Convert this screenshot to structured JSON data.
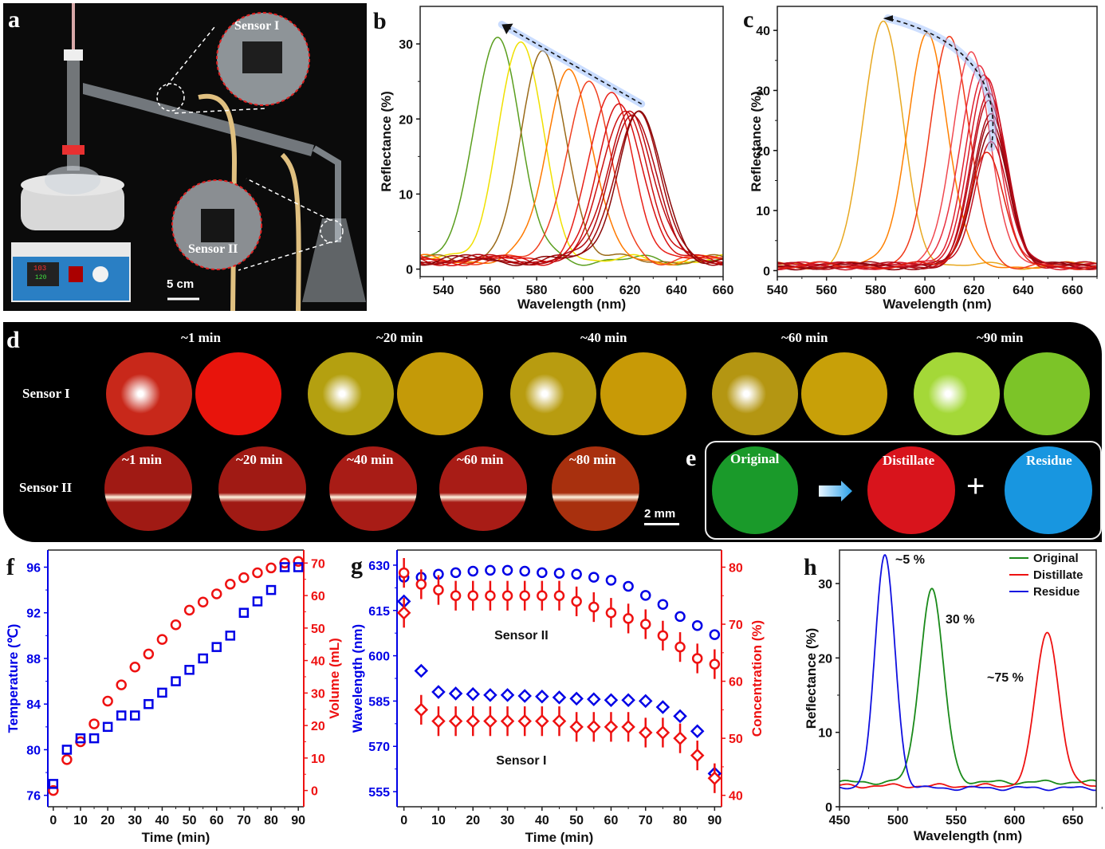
{
  "panel_labels": {
    "a": "a",
    "b": "b",
    "c": "c",
    "d": "d",
    "e": "e",
    "f": "f",
    "g": "g",
    "h": "h"
  },
  "panel_a": {
    "sensor1_label": "Sensor I",
    "sensor2_label": "Sensor II",
    "scale_bar": "5 cm",
    "display_top": "103",
    "display_bottom": "120"
  },
  "panel_d": {
    "row1_label": "Sensor I",
    "row2_label": "Sensor II",
    "row1_times": [
      "~1 min",
      "~20 min",
      "~40 min",
      "~60 min",
      "~90 min"
    ],
    "row2_times": [
      "~1 min",
      "~20 min",
      "~40 min",
      "~60 min",
      "~80 min"
    ],
    "scale_bar": "2 mm",
    "colors": {
      "row1": [
        [
          "#c8281a",
          "#e8140c"
        ],
        [
          "#b4a010",
          "#c49a08"
        ],
        [
          "#b89c10",
          "#c89a06"
        ],
        [
          "#b49612",
          "#c8a008"
        ],
        [
          "#a4d838",
          "#7cc428"
        ]
      ],
      "row2": [
        "#a01a14",
        "#a01a14",
        "#a81c16",
        "#a81c16",
        "#a8300e"
      ]
    }
  },
  "panel_e": {
    "original": "Original",
    "distillate": "Distillate",
    "residue": "Residue",
    "plus": "+",
    "colors": {
      "original": "#1a9a2a",
      "distillate": "#d8141c",
      "residue": "#1896e0"
    }
  },
  "chart_data": [
    {
      "id": "b",
      "type": "line",
      "title": "",
      "xlabel": "Wavelength (nm)",
      "ylabel": "Reflectance (%)",
      "xlim": [
        530,
        660
      ],
      "ylim": [
        -1,
        35
      ],
      "xticks": [
        540,
        560,
        580,
        600,
        620,
        640,
        660
      ],
      "yticks": [
        0,
        10,
        20,
        30
      ],
      "annotation": "dashed arrow showing peak shift toward shorter wavelength",
      "series": [
        {
          "peak_nm": 563,
          "peak_R": 31.5,
          "color": "#5a9e1e"
        },
        {
          "peak_nm": 573,
          "peak_R": 30.2,
          "color": "#f0e000"
        },
        {
          "peak_nm": 583,
          "peak_R": 28.9,
          "color": "#9a6a18"
        },
        {
          "peak_nm": 594,
          "peak_R": 27.0,
          "color": "#ff7a00"
        },
        {
          "peak_nm": 602,
          "peak_R": 24.7,
          "color": "#f04020"
        },
        {
          "peak_nm": 612,
          "peak_R": 23.2,
          "color": "#e82018"
        },
        {
          "peak_nm": 616,
          "peak_R": 22.0,
          "color": "#d81010"
        },
        {
          "peak_nm": 618,
          "peak_R": 21.6,
          "color": "#cc1010"
        },
        {
          "peak_nm": 620,
          "peak_R": 21.3,
          "color": "#c00c10"
        },
        {
          "peak_nm": 621,
          "peak_R": 21.1,
          "color": "#b00a10"
        },
        {
          "peak_nm": 623,
          "peak_R": 20.9,
          "color": "#a00a0c"
        },
        {
          "peak_nm": 624,
          "peak_R": 20.7,
          "color": "#8a0808"
        }
      ]
    },
    {
      "id": "c",
      "type": "line",
      "title": "",
      "xlabel": "Wavelength (nm)",
      "ylabel": "Reflectance (%)",
      "xlim": [
        540,
        670
      ],
      "ylim": [
        -1,
        44
      ],
      "xticks": [
        540,
        560,
        580,
        600,
        620,
        640,
        660
      ],
      "yticks": [
        0,
        10,
        20,
        30,
        40
      ],
      "annotation": "curved dashed arrow showing peak shift and intensity increase",
      "series": [
        {
          "peak_nm": 583,
          "peak_R": 41.2,
          "color": "#e8a820"
        },
        {
          "peak_nm": 601,
          "peak_R": 39.8,
          "color": "#ff8000"
        },
        {
          "peak_nm": 610,
          "peak_R": 38.4,
          "color": "#f03818"
        },
        {
          "peak_nm": 619,
          "peak_R": 36.3,
          "color": "#f04850"
        },
        {
          "peak_nm": 622,
          "peak_R": 34.6,
          "color": "#e83040"
        },
        {
          "peak_nm": 624,
          "peak_R": 33.0,
          "color": "#e02030"
        },
        {
          "peak_nm": 625,
          "peak_R": 31.8,
          "color": "#d81828"
        },
        {
          "peak_nm": 626,
          "peak_R": 29.4,
          "color": "#c81020"
        },
        {
          "peak_nm": 626,
          "peak_R": 27.7,
          "color": "#b80c18"
        },
        {
          "peak_nm": 627,
          "peak_R": 26.2,
          "color": "#a80a14"
        },
        {
          "peak_nm": 627,
          "peak_R": 25.0,
          "color": "#9a0810"
        },
        {
          "peak_nm": 627,
          "peak_R": 23.9,
          "color": "#8a0810"
        },
        {
          "peak_nm": 627,
          "peak_R": 21.7,
          "color": "#c01020"
        },
        {
          "peak_nm": 625,
          "peak_R": 20.2,
          "color": "#e02010"
        }
      ]
    },
    {
      "id": "f",
      "type": "scatter",
      "xlabel": "Time (min)",
      "ylabel_left": "Temperature (℃)",
      "ylabel_right": "Volume (mL)",
      "xlim": [
        -2,
        92
      ],
      "ylim_left": [
        75,
        97.5
      ],
      "ylim_right": [
        -5,
        74
      ],
      "xticks": [
        0,
        10,
        20,
        30,
        40,
        50,
        60,
        70,
        80,
        90
      ],
      "yticks_left": [
        76,
        80,
        84,
        88,
        92,
        96
      ],
      "yticks_right": [
        0,
        10,
        20,
        30,
        40,
        50,
        60,
        70
      ],
      "x": [
        0,
        5,
        10,
        15,
        20,
        25,
        30,
        35,
        40,
        45,
        50,
        55,
        60,
        65,
        70,
        75,
        80,
        85,
        90
      ],
      "series": [
        {
          "name": "Temperature",
          "axis": "left",
          "marker": "square",
          "color": "#0000e6",
          "values": [
            77,
            80,
            81,
            81,
            82,
            83,
            83,
            84,
            85,
            86,
            87,
            88,
            89,
            90,
            92,
            93,
            94,
            96,
            96
          ]
        },
        {
          "name": "Volume",
          "axis": "right",
          "marker": "circle",
          "color": "#ee1111",
          "values": [
            0,
            9.5,
            15,
            20.5,
            27.5,
            32.5,
            38,
            42,
            46.5,
            51,
            55.5,
            58,
            60.5,
            63.5,
            65.5,
            67,
            68.5,
            70,
            70.5
          ]
        }
      ]
    },
    {
      "id": "g",
      "type": "scatter",
      "xlabel": "Time (min)",
      "ylabel_left": "Wavelength (nm)",
      "ylabel_right": "Concentration (%)",
      "xlim": [
        -2,
        92
      ],
      "ylim_left": [
        550,
        635
      ],
      "ylim_right": [
        38,
        83
      ],
      "xticks": [
        0,
        10,
        20,
        30,
        40,
        50,
        60,
        70,
        80,
        90
      ],
      "yticks_left": [
        555,
        570,
        585,
        600,
        615,
        630
      ],
      "yticks_right": [
        40,
        50,
        60,
        70,
        80
      ],
      "annotations": [
        "Sensor II",
        "Sensor I"
      ],
      "x": [
        0,
        5,
        10,
        15,
        20,
        25,
        30,
        35,
        40,
        45,
        50,
        55,
        60,
        65,
        70,
        75,
        80,
        85,
        90
      ],
      "series": [
        {
          "name": "Sensor II wavelength",
          "axis": "left",
          "marker": "circle",
          "color": "#0000e6",
          "values": [
            626,
            626,
            627,
            627.5,
            628,
            628.3,
            628.3,
            628,
            627.5,
            627.3,
            627,
            626,
            625,
            623,
            620,
            617,
            613,
            610,
            607
          ]
        },
        {
          "name": "Sensor II concentration",
          "axis": "right",
          "marker": "circle",
          "color": "#ee1111",
          "error": 2.6,
          "values": [
            79,
            77,
            76,
            75,
            75,
            75,
            75,
            75,
            75,
            75,
            74,
            73,
            72,
            71,
            70,
            68,
            66,
            64,
            63
          ]
        },
        {
          "name": "Sensor I wavelength",
          "axis": "left",
          "marker": "diamond",
          "color": "#0000e6",
          "values": [
            618,
            595,
            588,
            587.5,
            587.3,
            587,
            587,
            586.7,
            586.5,
            586.2,
            585.8,
            585.6,
            585.3,
            585.3,
            585,
            583,
            580,
            575,
            561
          ]
        },
        {
          "name": "Sensor I concentration",
          "axis": "right",
          "marker": "diamond",
          "color": "#ee1111",
          "error": 2.6,
          "values": [
            72,
            55,
            53,
            53,
            53,
            53,
            53,
            53,
            53,
            53,
            52,
            52,
            52,
            52,
            51,
            51,
            50,
            47,
            43
          ]
        }
      ]
    },
    {
      "id": "h",
      "type": "line",
      "xlabel": "Wavelength (nm)",
      "ylabel": "Reflectance (%)",
      "xlim": [
        450,
        670
      ],
      "ylim": [
        0,
        34.5
      ],
      "xticks": [
        450,
        500,
        550,
        600,
        650
      ],
      "yticks": [
        0,
        10,
        20,
        30
      ],
      "legend": {
        "position": "top-right",
        "entries": [
          "Original",
          "Distillate",
          "Residue"
        ]
      },
      "annotations": [
        {
          "text": "~5 %",
          "near": "Residue peak"
        },
        {
          "text": "30 %",
          "near": "Original peak"
        },
        {
          "text": "~75 %",
          "near": "Distillate peak"
        }
      ],
      "series": [
        {
          "name": "Original",
          "color": "#1a8a1a",
          "peak_nm": 529,
          "peak_R": 29.3,
          "baseline": 3.3
        },
        {
          "name": "Distillate",
          "color": "#ee1111",
          "peak_nm": 628,
          "peak_R": 23.5,
          "baseline": 2.8
        },
        {
          "name": "Residue",
          "color": "#1010e0",
          "peak_nm": 489,
          "peak_R": 33.7,
          "baseline": 2.5
        }
      ]
    }
  ]
}
